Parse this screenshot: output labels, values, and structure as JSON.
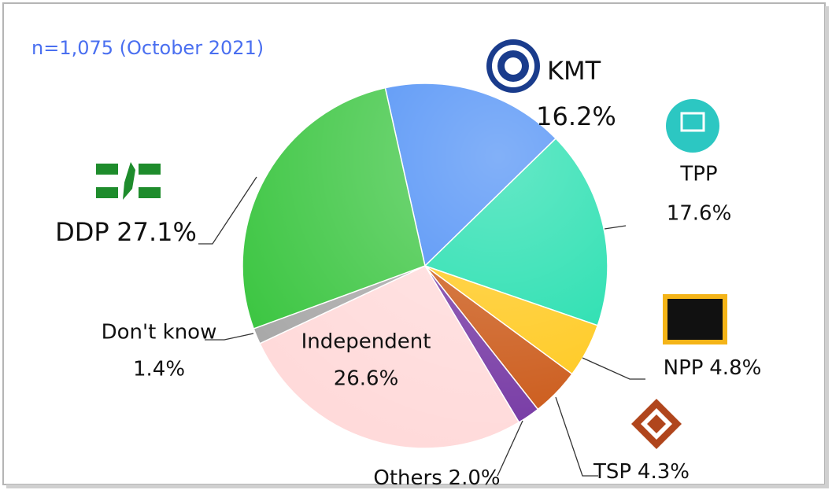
{
  "chart_data": {
    "type": "pie",
    "subtitle": "n=1,075 (October 2021)",
    "categories": [
      "KMT",
      "TPP",
      "NPP",
      "TSP",
      "Others",
      "Independent",
      "Don't know",
      "DDP"
    ],
    "values": [
      16.2,
      17.6,
      4.8,
      4.3,
      2.0,
      26.6,
      1.4,
      27.1
    ],
    "value_labels": [
      "16.2%",
      "17.6%",
      "4.8%",
      "4.3%",
      "2.0%",
      "26.6%",
      "1.4%",
      "27.1%"
    ],
    "colors": [
      "#3f86f5",
      "#12dca8",
      "#ffc612",
      "#c9520e",
      "#7030a0",
      "#ffd9d9",
      "#a6a6a6",
      "#36c43c"
    ]
  }
}
